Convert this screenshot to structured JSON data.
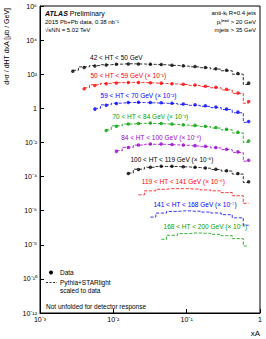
{
  "chart_data": {
    "type": "scatter",
    "log": true,
    "x_label": "xA",
    "y_label": "d²σ / dHT dxA [μb / GeV]",
    "xlim": [
      0.001,
      1
    ],
    "ylim": [
      1e-12,
      1000000.0
    ],
    "xticks": [
      {
        "value": 0.001,
        "label": "10⁻³"
      },
      {
        "value": 0.01,
        "label": "10⁻²"
      },
      {
        "value": 0.1,
        "label": "10⁻¹"
      },
      1
    ],
    "yticks": [
      {
        "value": 1e-12,
        "label": "10⁻¹²"
      },
      {
        "value": 1e-10,
        "label": "10⁻¹⁰"
      },
      {
        "value": 1e-08,
        "label": "10⁻⁸"
      },
      {
        "value": 1e-06,
        "label": "10⁻⁶"
      },
      {
        "value": 0.0001,
        "label": "10⁻⁴"
      },
      {
        "value": 0.01,
        "label": "10⁻²"
      },
      1,
      {
        "value": 100,
        "label": "10²"
      },
      {
        "value": 10000,
        "label": "10⁴"
      },
      {
        "value": 1000000,
        "label": "10⁶"
      }
    ],
    "line_style": "dashed",
    "legend": "lower left",
    "legend_labels": {
      "data": "Data",
      "model": [
        "Pythia+STARlight",
        "scaled to data"
      ]
    },
    "annotations": {
      "experiment": "ATLAS",
      "status": "Preliminary",
      "left": [
        "2015 Pb+Pb data, 0.38 nb⁻¹",
        "√sNN = 5.02 TeV"
      ],
      "right": [
        "anti-kₜ R=0.4 jets",
        "pₜˡᵉᵃᵈ > 20 GeV",
        "mjets > 35 GeV"
      ],
      "note": "Not unfolded for detector response"
    },
    "x": [
      0.0028,
      0.004,
      0.0056,
      0.008,
      0.011,
      0.016,
      0.022,
      0.032,
      0.045,
      0.063,
      0.09,
      0.13,
      0.18,
      0.25,
      0.35,
      0.5,
      0.7
    ],
    "series": [
      {
        "name": "42 < HT < 50 GeV",
        "color": "#000000",
        "marker": "circle",
        "values": [
          150,
          250,
          300,
          350,
          380,
          400,
          400,
          390,
          370,
          340,
          310,
          280,
          250,
          210,
          170,
          110,
          30
        ],
        "model_values": [
          170,
          270,
          320,
          360,
          390,
          410,
          400,
          380,
          360,
          330,
          300,
          270,
          240,
          200,
          160,
          100,
          25
        ]
      },
      {
        "name": "50 < HT < 59 GeV (× 10⁻¹)",
        "color": "#ff0000",
        "marker": "circle",
        "values": [
          null,
          14,
          22,
          28,
          31,
          33,
          33,
          32,
          30,
          28,
          26,
          23,
          20,
          17,
          13,
          8,
          2.5
        ],
        "model_values": [
          null,
          16,
          24,
          29,
          32,
          33,
          33,
          31,
          29,
          27,
          25,
          22,
          19,
          16,
          12,
          7.5,
          2
        ]
      },
      {
        "name": "59 < HT < 70 GeV (× 10⁻²)",
        "color": "#0000ff",
        "marker": "circle",
        "values": [
          null,
          null,
          0.9,
          1.5,
          1.9,
          2.2,
          2.3,
          2.2,
          2.1,
          2,
          1.8,
          1.6,
          1.4,
          1.2,
          0.9,
          0.6,
          0.17
        ],
        "model_values": [
          null,
          null,
          1,
          1.6,
          2,
          2.2,
          2.2,
          2.1,
          2,
          1.9,
          1.7,
          1.5,
          1.3,
          1.1,
          0.85,
          0.55,
          0.15
        ]
      },
      {
        "name": "70 < HT < 84 GeV (× 10⁻³)",
        "color": "#00a000",
        "marker": "circle",
        "values": [
          null,
          null,
          null,
          0.05,
          0.09,
          0.12,
          0.13,
          0.14,
          0.13,
          0.12,
          0.11,
          0.1,
          0.09,
          0.075,
          0.06,
          0.04,
          0.012
        ],
        "model_values": [
          null,
          null,
          null,
          0.055,
          0.095,
          0.12,
          0.13,
          0.13,
          0.125,
          0.115,
          0.105,
          0.095,
          0.085,
          0.07,
          0.055,
          0.036,
          0.01
        ]
      },
      {
        "name": "84 < HT < 100 GeV (× 10⁻⁴)",
        "color": "#9900cc",
        "marker": "circle",
        "values": [
          null,
          null,
          null,
          null,
          0.003,
          0.005,
          0.007,
          0.008,
          0.008,
          0.0075,
          0.007,
          0.0065,
          0.006,
          0.005,
          0.004,
          0.0028,
          0.0009
        ],
        "model_values": [
          null,
          null,
          null,
          null,
          0.0033,
          0.0052,
          0.007,
          0.0078,
          0.0078,
          0.0073,
          0.0068,
          0.0062,
          0.0056,
          0.0048,
          0.0038,
          0.0026,
          0.0008
        ]
      },
      {
        "name": "100 < HT < 119 GeV (× 10⁻⁵)",
        "color": "#000000",
        "marker": "circle",
        "values": [
          null,
          null,
          null,
          null,
          null,
          0.00015,
          0.00026,
          0.00035,
          0.0004,
          0.0004,
          0.00038,
          0.00035,
          0.00032,
          0.00027,
          0.00022,
          0.00015,
          5e-05
        ],
        "model_values": [
          null,
          null,
          null,
          null,
          null,
          0.00016,
          0.00027,
          0.00035,
          0.00039,
          0.00039,
          0.00037,
          0.00034,
          0.00031,
          0.00026,
          0.00021,
          0.00014,
          4.5e-05
        ]
      },
      {
        "name": "119 < HT < 141 GeV (× 10⁻⁶)",
        "color": "#ff0000",
        "marker": "open circle",
        "values": [
          null,
          null,
          null,
          null,
          null,
          null,
          8e-06,
          1.4e-05,
          1.8e-05,
          2e-05,
          2e-05,
          1.9e-05,
          1.7e-05,
          1.5e-05,
          1.2e-05,
          8e-06,
          3e-06
        ],
        "model_values": [
          null,
          null,
          null,
          null,
          null,
          null,
          8.5e-06,
          1.45e-05,
          1.8e-05,
          1.95e-05,
          1.95e-05,
          1.85e-05,
          1.65e-05,
          1.45e-05,
          1.15e-05,
          7.5e-06,
          2.7e-06
        ]
      },
      {
        "name": "141 < HT < 168 GeV (× 10⁻⁷)",
        "color": "#0000ff",
        "marker": "open circle",
        "values": [
          null,
          null,
          null,
          null,
          null,
          null,
          null,
          4e-07,
          7e-07,
          9e-07,
          1e-06,
          9.5e-07,
          8.5e-07,
          7.5e-07,
          6e-07,
          4e-07,
          1.5e-07
        ],
        "model_values": [
          null,
          null,
          null,
          null,
          null,
          null,
          null,
          4.2e-07,
          7.2e-07,
          9e-07,
          9.8e-07,
          9.3e-07,
          8.3e-07,
          7.3e-07,
          5.8e-07,
          3.8e-07,
          1.4e-07
        ]
      },
      {
        "name": "168 < HT < 200 GeV (× 10⁻⁸)",
        "color": "#00a000",
        "marker": "open circle",
        "values": [
          null,
          null,
          null,
          null,
          null,
          null,
          null,
          null,
          2e-08,
          3.5e-08,
          4.5e-08,
          5e-08,
          4.8e-08,
          4.2e-08,
          3.5e-08,
          2.4e-08,
          9e-09
        ],
        "model_values": [
          null,
          null,
          null,
          null,
          null,
          null,
          null,
          null,
          2.1e-08,
          3.6e-08,
          4.5e-08,
          4.9e-08,
          4.7e-08,
          4.1e-08,
          3.4e-08,
          2.3e-08,
          8.5e-09
        ]
      }
    ]
  }
}
